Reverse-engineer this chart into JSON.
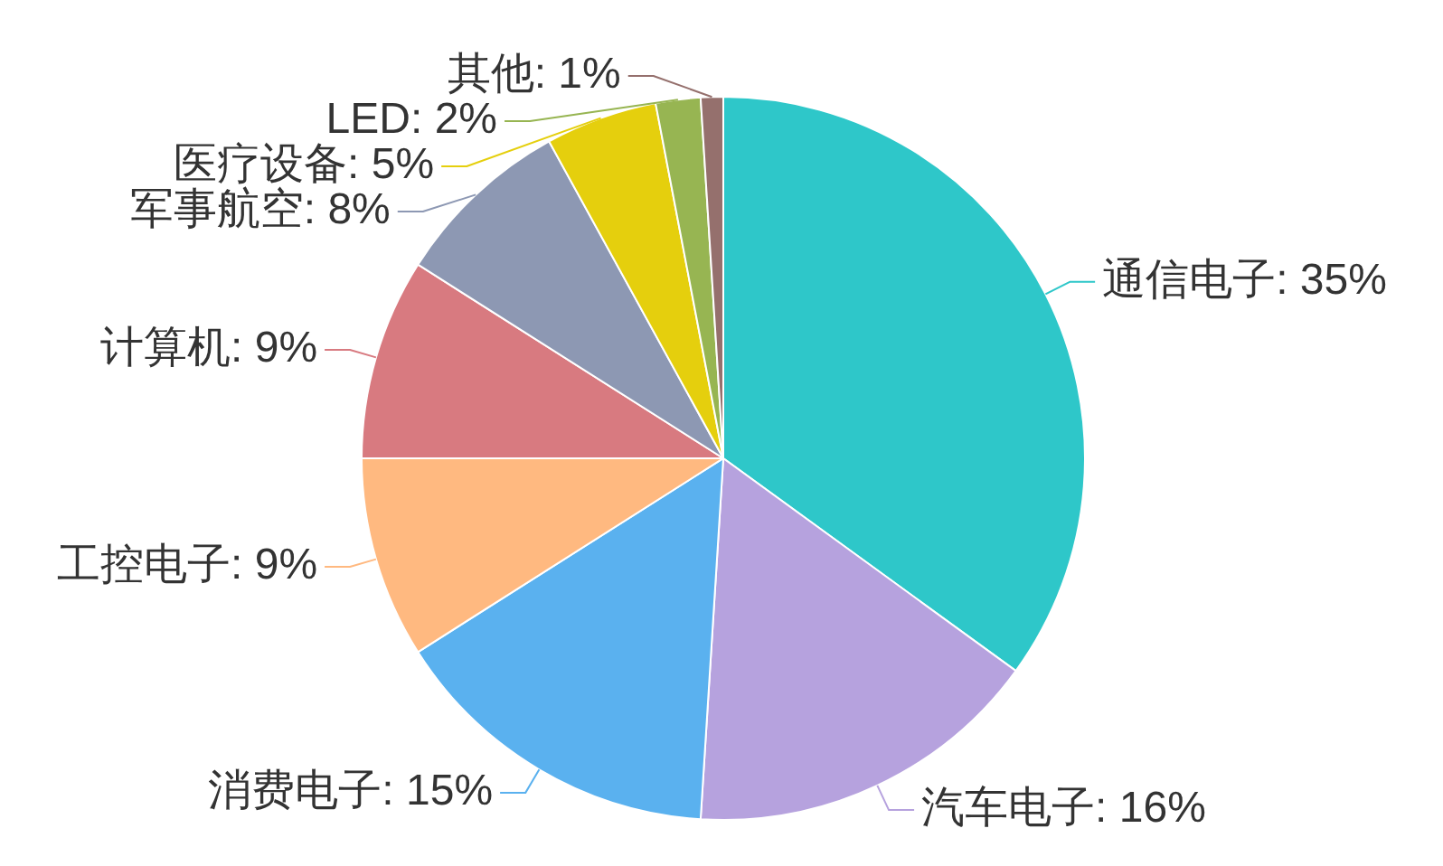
{
  "chart_data": {
    "type": "pie",
    "categories": [
      "通信电子",
      "汽车电子",
      "消费电子",
      "工控电子",
      "计算机",
      "军事航空",
      "医疗设备",
      "LED",
      "其他"
    ],
    "values": [
      35,
      16,
      15,
      9,
      9,
      8,
      5,
      2,
      1
    ],
    "colors": [
      "#2ec7c9",
      "#b6a2de",
      "#5ab1ef",
      "#ffb980",
      "#d87a80",
      "#8d98b3",
      "#e5cf0d",
      "#97b552",
      "#95706d"
    ],
    "value_labels": [
      "35%",
      "16%",
      "15%",
      "9%",
      "9%",
      "8%",
      "5%",
      "2%",
      "1%"
    ]
  }
}
